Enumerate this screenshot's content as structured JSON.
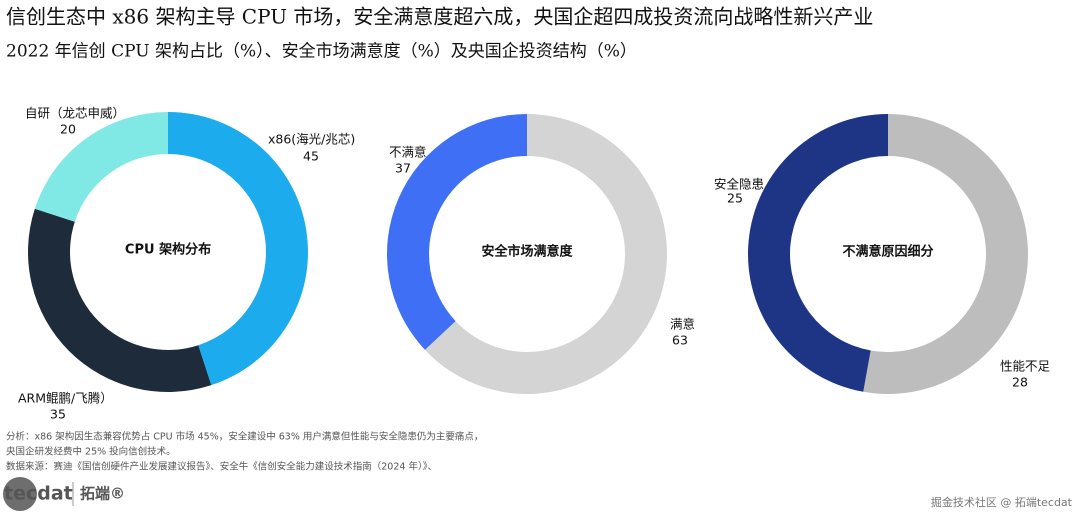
{
  "title": "信创生态中 x86 架构主导 CPU 市场，安全满意度超六成，央国企超四成投资流向战略性新兴产业",
  "subtitle": "2022 年信创 CPU 架构占比（%）、安全市场满意度（%）及央国企投资结构（%）",
  "notes": [
    "分析：x86 架构因生态兼容优势占 CPU 市场 45%，安全建设中 63% 用户满意但性能与安全隐患仍为主要痛点，",
    "央国企研发经费中 25% 投向信创技术。",
    "数据来源：赛迪《国信创硬件产业发展建议报告》、安全牛《信创安全能力建设技术指南（2024 年）》、"
  ],
  "logo": {
    "mark": "tecdat",
    "name": "拓端®"
  },
  "watermark": "掘金技术社区 @ 拓端tecdat",
  "chart_data": [
    {
      "type": "pie",
      "center_label": "CPU 架构分布",
      "categories": [
        "x86(海光/兆芯)",
        "ARM鲲鹏/飞腾）",
        "自研（龙芯申威）"
      ],
      "values": [
        45,
        35,
        20
      ],
      "colors": [
        "#1cabec",
        "#1d2b3b",
        "#80e9e6"
      ]
    },
    {
      "type": "pie",
      "center_label": "安全市场满意度",
      "categories": [
        "满意",
        "不满意"
      ],
      "values": [
        63,
        37
      ],
      "colors": [
        "#d4d4d4",
        "#3f6ff4"
      ]
    },
    {
      "type": "pie",
      "center_label": "不满意原因细分",
      "categories": [
        "性能不足",
        "安全隐患"
      ],
      "values": [
        28,
        25
      ],
      "colors": [
        "#bdbdbd",
        "#1e3586"
      ]
    }
  ]
}
